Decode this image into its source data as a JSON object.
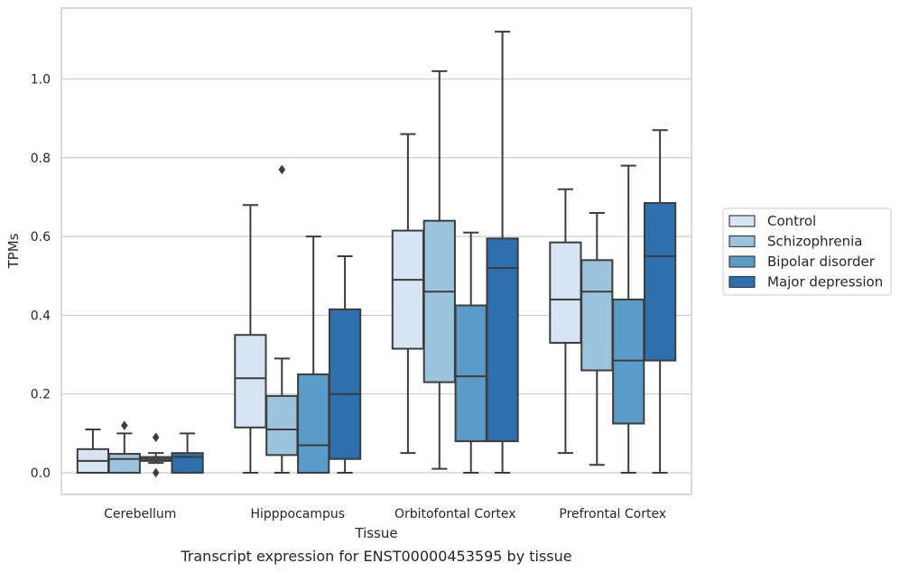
{
  "chart_data": {
    "type": "box",
    "title": "",
    "caption": "Transcript expression for ENST00000453595 by tissue",
    "xlabel": "Tissue",
    "ylabel": "TPMs",
    "ylim": [
      -0.055,
      1.18
    ],
    "yticks": [
      0.0,
      0.2,
      0.4,
      0.6,
      0.8,
      1.0
    ],
    "ytick_labels": [
      "0.0",
      "0.2",
      "0.4",
      "0.6",
      "0.8",
      "1.0"
    ],
    "grid": "horizontal",
    "legend_position": "right",
    "categories": [
      "Cerebellum",
      "Hipppocampus",
      "Orbitofontal Cortex",
      "Prefrontal Cortex"
    ],
    "series": [
      {
        "name": "Control",
        "color": "#d6e4f3",
        "boxes": [
          {
            "whisker_low": 0.0,
            "q1": 0.0,
            "median": 0.03,
            "q3": 0.06,
            "whisker_high": 0.11,
            "outliers": []
          },
          {
            "whisker_low": 0.0,
            "q1": 0.115,
            "median": 0.24,
            "q3": 0.35,
            "whisker_high": 0.68,
            "outliers": []
          },
          {
            "whisker_low": 0.05,
            "q1": 0.315,
            "median": 0.49,
            "q3": 0.615,
            "whisker_high": 0.86,
            "outliers": []
          },
          {
            "whisker_low": 0.05,
            "q1": 0.33,
            "median": 0.44,
            "q3": 0.585,
            "whisker_high": 0.72,
            "outliers": []
          }
        ]
      },
      {
        "name": "Schizophrenia",
        "color": "#9cc4dd",
        "boxes": [
          {
            "whisker_low": 0.0,
            "q1": 0.0,
            "median": 0.035,
            "q3": 0.048,
            "whisker_high": 0.1,
            "outliers": [
              0.12
            ]
          },
          {
            "whisker_low": 0.0,
            "q1": 0.045,
            "median": 0.11,
            "q3": 0.195,
            "whisker_high": 0.29,
            "outliers": [
              0.77
            ]
          },
          {
            "whisker_low": 0.01,
            "q1": 0.23,
            "median": 0.46,
            "q3": 0.64,
            "whisker_high": 1.02,
            "outliers": []
          },
          {
            "whisker_low": 0.02,
            "q1": 0.26,
            "median": 0.46,
            "q3": 0.54,
            "whisker_high": 0.66,
            "outliers": []
          }
        ]
      },
      {
        "name": "Bipolar disorder",
        "color": "#5b9bc8",
        "boxes": [
          {
            "whisker_low": 0.025,
            "q1": 0.03,
            "median": 0.035,
            "q3": 0.04,
            "whisker_high": 0.05,
            "outliers": [
              0.0,
              0.09
            ]
          },
          {
            "whisker_low": 0.0,
            "q1": 0.0,
            "median": 0.07,
            "q3": 0.25,
            "whisker_high": 0.6,
            "outliers": []
          },
          {
            "whisker_low": 0.0,
            "q1": 0.08,
            "median": 0.245,
            "q3": 0.425,
            "whisker_high": 0.61,
            "outliers": []
          },
          {
            "whisker_low": 0.0,
            "q1": 0.125,
            "median": 0.285,
            "q3": 0.44,
            "whisker_high": 0.78,
            "outliers": []
          }
        ]
      },
      {
        "name": "Major depression",
        "color": "#2e6fae",
        "boxes": [
          {
            "whisker_low": 0.0,
            "q1": 0.0,
            "median": 0.04,
            "q3": 0.05,
            "whisker_high": 0.1,
            "outliers": []
          },
          {
            "whisker_low": 0.0,
            "q1": 0.035,
            "median": 0.2,
            "q3": 0.415,
            "whisker_high": 0.55,
            "outliers": []
          },
          {
            "whisker_low": 0.0,
            "q1": 0.08,
            "median": 0.52,
            "q3": 0.595,
            "whisker_high": 1.12,
            "outliers": []
          },
          {
            "whisker_low": 0.0,
            "q1": 0.285,
            "median": 0.55,
            "q3": 0.685,
            "whisker_high": 0.87,
            "outliers": []
          }
        ]
      }
    ]
  }
}
